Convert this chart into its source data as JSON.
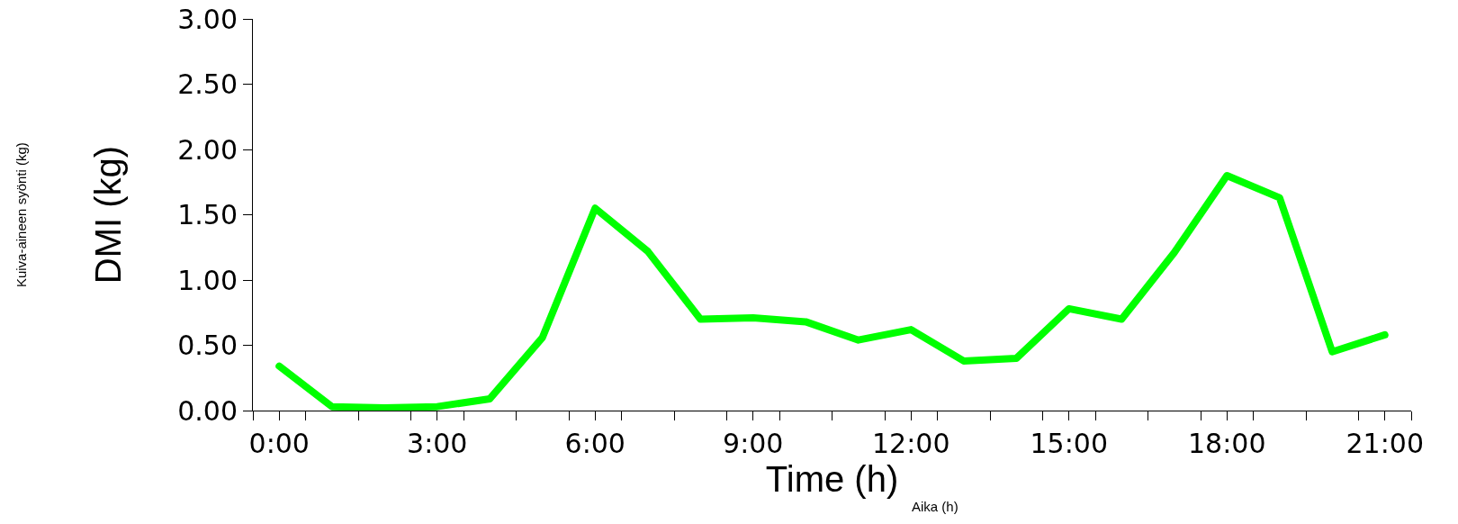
{
  "chart_data": {
    "type": "line",
    "xlabel": "Time (h)",
    "ylabel": "DMI (kg)",
    "annotations": [
      "Kuiva-aineen syönti (kg)",
      "Aika (h)"
    ],
    "x": [
      0,
      1,
      2,
      3,
      4,
      5,
      6,
      7,
      8,
      9,
      10,
      11,
      12,
      13,
      14,
      15,
      16,
      17,
      18,
      19,
      20,
      21
    ],
    "series": [
      {
        "color": "#00ff00",
        "values": [
          0.34,
          0.03,
          0.02,
          0.03,
          0.09,
          0.56,
          1.55,
          1.22,
          0.7,
          0.71,
          0.68,
          0.54,
          0.62,
          0.38,
          0.4,
          0.78,
          0.7,
          1.21,
          1.8,
          1.63,
          0.45,
          0.58
        ]
      }
    ],
    "xlim": [
      -0.5,
      21.5
    ],
    "xticks": [
      {
        "value": 0,
        "label": "0:00"
      },
      {
        "value": 3,
        "label": "3:00"
      },
      {
        "value": 6,
        "label": "6:00"
      },
      {
        "value": 9,
        "label": "9:00"
      },
      {
        "value": 12,
        "label": "12:00"
      },
      {
        "value": 15,
        "label": "15:00"
      },
      {
        "value": 18,
        "label": "18:00"
      },
      {
        "value": 21,
        "label": "21:00"
      },
      {
        "value": -0.5,
        "label": null
      },
      {
        "value": 0.5,
        "label": null
      },
      {
        "value": 1.5,
        "label": null
      },
      {
        "value": 2.5,
        "label": null
      },
      {
        "value": 3.5,
        "label": null
      },
      {
        "value": 4.5,
        "label": null
      },
      {
        "value": 5.5,
        "label": null
      },
      {
        "value": 6.5,
        "label": null
      },
      {
        "value": 7.5,
        "label": null
      },
      {
        "value": 8.5,
        "label": null
      },
      {
        "value": 9.5,
        "label": null
      },
      {
        "value": 10.5,
        "label": null
      },
      {
        "value": 11.5,
        "label": null
      },
      {
        "value": 12.5,
        "label": null
      },
      {
        "value": 13.5,
        "label": null
      },
      {
        "value": 14.5,
        "label": null
      },
      {
        "value": 15.5,
        "label": null
      },
      {
        "value": 16.5,
        "label": null
      },
      {
        "value": 17.5,
        "label": null
      },
      {
        "value": 18.5,
        "label": null
      },
      {
        "value": 19.5,
        "label": null
      },
      {
        "value": 20.5,
        "label": null
      },
      {
        "value": 21.5,
        "label": null
      }
    ],
    "ylim": [
      0,
      3
    ],
    "yticks": [
      {
        "value": 0,
        "label": "0.00"
      },
      {
        "value": 0.5,
        "label": "0.50"
      },
      {
        "value": 1,
        "label": "1.00"
      },
      {
        "value": 1.5,
        "label": "1.50"
      },
      {
        "value": 2,
        "label": "2.00"
      },
      {
        "value": 2.5,
        "label": "2.50"
      },
      {
        "value": 3,
        "label": "3.00"
      }
    ],
    "marker": "none",
    "line_style": "solid"
  }
}
